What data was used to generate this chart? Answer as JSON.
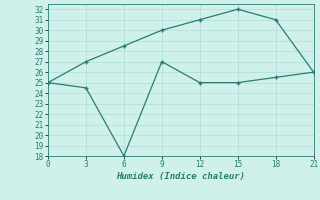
{
  "xlabel": "Humidex (Indice chaleur)",
  "x": [
    0,
    3,
    6,
    9,
    12,
    15,
    18,
    21
  ],
  "line1": [
    25,
    27,
    28.5,
    30,
    31,
    32,
    31,
    26
  ],
  "line2": [
    25,
    24.5,
    18,
    27,
    25,
    25,
    25.5,
    26
  ],
  "color": "#2a7d6e",
  "bg_color": "#cff0eb",
  "grid_color": "#b0ddd7",
  "ylim": [
    18,
    32.5
  ],
  "xlim": [
    0,
    21
  ],
  "yticks": [
    18,
    19,
    20,
    21,
    22,
    23,
    24,
    25,
    26,
    27,
    28,
    29,
    30,
    31,
    32
  ],
  "xticks": [
    0,
    3,
    6,
    9,
    12,
    15,
    18,
    21
  ],
  "tick_fontsize": 5.5,
  "xlabel_fontsize": 6.5
}
